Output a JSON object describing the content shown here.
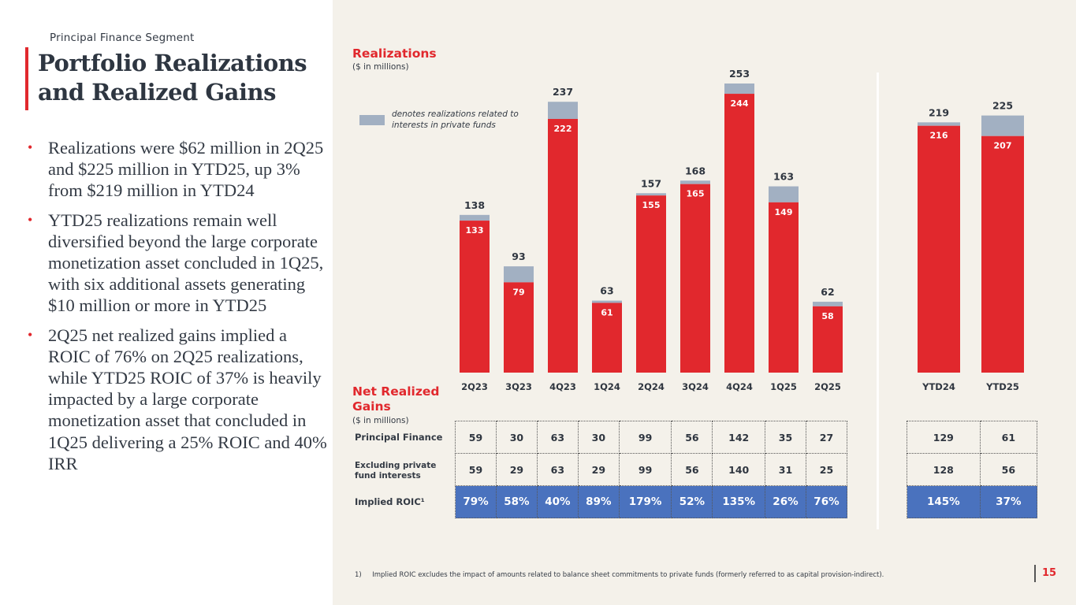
{
  "header": {
    "segment": "Principal Finance Segment",
    "title_line1": "Portfolio Realizations",
    "title_line2": "and Realized Gains"
  },
  "bullets": [
    "Realizations were $62 million in 2Q25 and $225 million in YTD25, up 3% from $219 million in YTD24",
    "YTD25 realizations remain well diversified beyond the large corporate monetization asset concluded in 1Q25, with six additional assets generating $10 million or more in YTD25",
    "2Q25 net realized gains implied a ROIC of 76% on 2Q25 realizations, while YTD25 ROIC of 37% is heavily impacted by a large corporate monetization asset that concluded in 1Q25 delivering a 25% ROIC and 40% IRR"
  ],
  "realizations": {
    "title": "Realizations",
    "subtitle": "($ in millions)",
    "legend": "denotes realizations related to interests in private funds"
  },
  "gains": {
    "title_line1": "Net Realized",
    "title_line2": "Gains",
    "subtitle": "($ in millions)",
    "row_labels": [
      "Principal Finance",
      "Excluding private fund interests",
      "Implied ROIC¹"
    ]
  },
  "colors": {
    "core": "#e1282d",
    "private_funds": "#a2b0c2",
    "roic_row": "#4a72be",
    "accent": "#e1282d"
  },
  "chart_data": {
    "type": "bar",
    "title": "Realizations",
    "subtitle": "($ in millions)",
    "stacked": true,
    "groups": [
      {
        "name": "quarterly",
        "categories": [
          "2Q23",
          "3Q23",
          "4Q23",
          "1Q24",
          "2Q24",
          "3Q24",
          "4Q24",
          "1Q25",
          "2Q25"
        ],
        "totals": [
          138,
          93,
          237,
          63,
          157,
          168,
          253,
          163,
          62
        ],
        "series": [
          {
            "name": "Excluding private fund interests",
            "values": [
              133,
              79,
              222,
              61,
              155,
              165,
              244,
              149,
              58
            ]
          },
          {
            "name": "Interests in private funds",
            "values": [
              5,
              14,
              15,
              2,
              2,
              3,
              9,
              14,
              4
            ]
          }
        ]
      },
      {
        "name": "ytd",
        "categories": [
          "YTD24",
          "YTD25"
        ],
        "totals": [
          219,
          225
        ],
        "series": [
          {
            "name": "Excluding private fund interests",
            "values": [
              216,
              207
            ]
          },
          {
            "name": "Interests in private funds",
            "values": [
              3,
              18
            ]
          }
        ]
      }
    ],
    "legend": "denotes realizations related to interests in private funds",
    "legend_placement": "top-left",
    "ylim": [
      0,
      260
    ],
    "grid": false
  },
  "table": {
    "quarterly": {
      "principal_finance": [
        "59",
        "30",
        "63",
        "30",
        "99",
        "56",
        "142",
        "35",
        "27"
      ],
      "excluding_private": [
        "59",
        "29",
        "63",
        "29",
        "99",
        "56",
        "140",
        "31",
        "25"
      ],
      "implied_roic": [
        "79%",
        "58%",
        "40%",
        "89%",
        "179%",
        "52%",
        "135%",
        "26%",
        "76%"
      ]
    },
    "ytd": {
      "principal_finance": [
        "129",
        "61"
      ],
      "excluding_private": [
        "128",
        "56"
      ],
      "implied_roic": [
        "145%",
        "37%"
      ]
    }
  },
  "footnote": "1)     Implied ROIC excludes the impact of amounts related to balance sheet commitments to private funds (formerly referred to as capital provision-indirect).",
  "page_number": "15"
}
